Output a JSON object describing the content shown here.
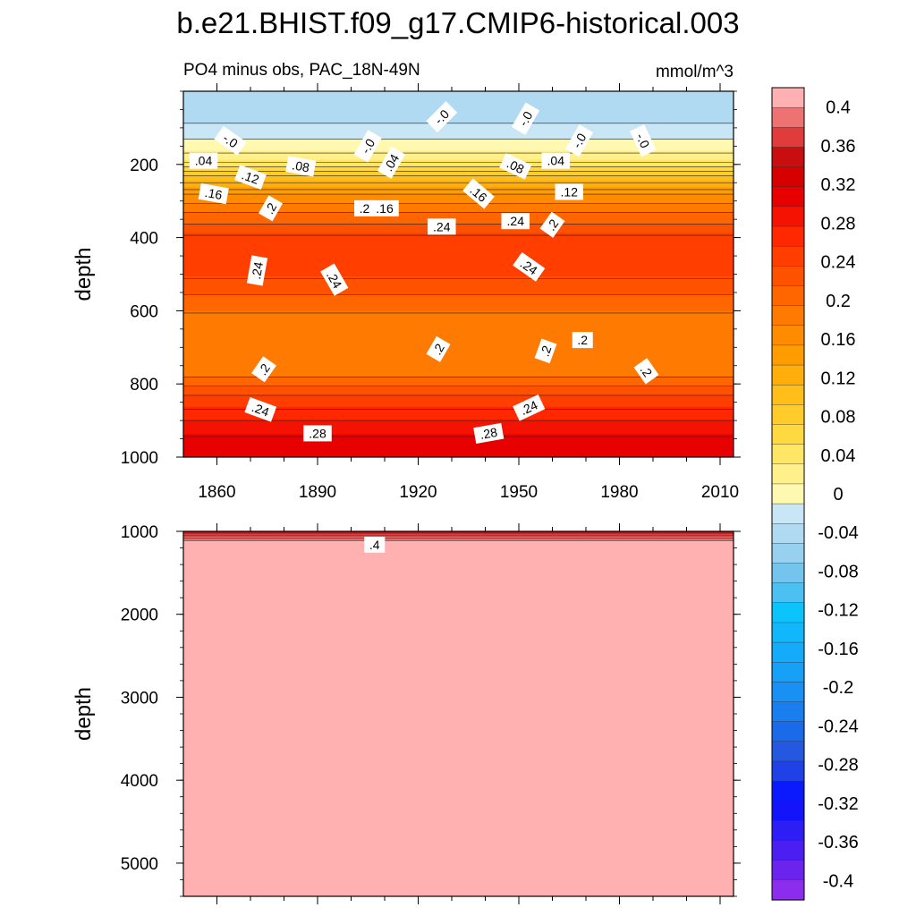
{
  "title": "b.e21.BHIST.f09_g17.CMIP6-historical.003",
  "subtitle_left": "PO4 minus obs, PAC_18N-49N",
  "subtitle_right": "mmol/m^3",
  "chart_data": [
    {
      "type": "heatmap",
      "panel": "upper",
      "xlabel": "",
      "ylabel": "depth",
      "xlim": [
        1850,
        2014
      ],
      "ylim": [
        1000,
        0
      ],
      "x_ticks": [
        1860,
        1890,
        1920,
        1950,
        1980,
        2010
      ],
      "x_tick_labels": [
        "1860",
        "1890",
        "1920",
        "1950",
        "1980",
        "2010"
      ],
      "y_ticks": [
        200,
        400,
        600,
        800,
        1000
      ],
      "y_tick_labels": [
        "200",
        "400",
        "600",
        "800",
        "1000"
      ],
      "depth_profile": [
        {
          "depth": 0,
          "value": -0.03
        },
        {
          "depth": 60,
          "value": -0.03
        },
        {
          "depth": 110,
          "value": -0.01
        },
        {
          "depth": 150,
          "value": 0.01
        },
        {
          "depth": 190,
          "value": 0.04
        },
        {
          "depth": 230,
          "value": 0.1
        },
        {
          "depth": 280,
          "value": 0.16
        },
        {
          "depth": 330,
          "value": 0.2
        },
        {
          "depth": 390,
          "value": 0.24
        },
        {
          "depth": 460,
          "value": 0.26
        },
        {
          "depth": 530,
          "value": 0.23
        },
        {
          "depth": 600,
          "value": 0.2
        },
        {
          "depth": 700,
          "value": 0.18
        },
        {
          "depth": 780,
          "value": 0.2
        },
        {
          "depth": 830,
          "value": 0.24
        },
        {
          "depth": 880,
          "value": 0.27
        },
        {
          "depth": 940,
          "value": 0.3
        },
        {
          "depth": 1000,
          "value": 0.32
        }
      ],
      "contour_labels": [
        {
          "text": "-.0",
          "year": 1864,
          "depth": 135,
          "angle": 35
        },
        {
          "text": "-.0",
          "year": 1905,
          "depth": 150,
          "angle": -60
        },
        {
          "text": "-.0",
          "year": 1927,
          "depth": 70,
          "angle": -45
        },
        {
          "text": "-.0",
          "year": 1952,
          "depth": 75,
          "angle": -60
        },
        {
          "text": "-.0",
          "year": 1968,
          "depth": 135,
          "angle": -60
        },
        {
          "text": "-.0",
          "year": 1987,
          "depth": 135,
          "angle": 65
        },
        {
          "text": ".04",
          "year": 1856,
          "depth": 190,
          "angle": 0
        },
        {
          "text": ".04",
          "year": 1912,
          "depth": 195,
          "angle": -60
        },
        {
          "text": ".04",
          "year": 1961,
          "depth": 190,
          "angle": 0
        },
        {
          "text": ".08",
          "year": 1885,
          "depth": 205,
          "angle": 10
        },
        {
          "text": ".08",
          "year": 1949,
          "depth": 205,
          "angle": 25
        },
        {
          "text": ".12",
          "year": 1870,
          "depth": 235,
          "angle": 20
        },
        {
          "text": ".12",
          "year": 1965,
          "depth": 275,
          "angle": 0
        },
        {
          "text": ".16",
          "year": 1859,
          "depth": 280,
          "angle": 10
        },
        {
          "text": ".16",
          "year": 1910,
          "depth": 320,
          "angle": 0
        },
        {
          "text": ".16",
          "year": 1938,
          "depth": 280,
          "angle": 40
        },
        {
          "text": ".2",
          "year": 1876,
          "depth": 320,
          "angle": -60
        },
        {
          "text": ".2",
          "year": 1904,
          "depth": 320,
          "angle": 0
        },
        {
          "text": ".2",
          "year": 1960,
          "depth": 365,
          "angle": -55
        },
        {
          "text": ".24",
          "year": 1927,
          "depth": 370,
          "angle": 0
        },
        {
          "text": ".24",
          "year": 1949,
          "depth": 355,
          "angle": 0
        },
        {
          "text": ".24",
          "year": 1872,
          "depth": 490,
          "angle": -80
        },
        {
          "text": ".24",
          "year": 1895,
          "depth": 515,
          "angle": 60
        },
        {
          "text": ".24",
          "year": 1953,
          "depth": 480,
          "angle": 35
        },
        {
          "text": ".2",
          "year": 1926,
          "depth": 705,
          "angle": -60
        },
        {
          "text": ".2",
          "year": 1958,
          "depth": 710,
          "angle": -70
        },
        {
          "text": ".2",
          "year": 1969,
          "depth": 680,
          "angle": 0
        },
        {
          "text": ".2",
          "year": 1874,
          "depth": 760,
          "angle": -55
        },
        {
          "text": ".2",
          "year": 1988,
          "depth": 765,
          "angle": 55
        },
        {
          "text": ".24",
          "year": 1873,
          "depth": 870,
          "angle": 20
        },
        {
          "text": ".24",
          "year": 1953,
          "depth": 865,
          "angle": -25
        },
        {
          "text": ".28",
          "year": 1890,
          "depth": 935,
          "angle": 0
        },
        {
          "text": ".28",
          "year": 1941,
          "depth": 935,
          "angle": -10
        }
      ]
    },
    {
      "type": "heatmap",
      "panel": "lower",
      "xlabel": "",
      "ylabel": "depth",
      "xlim": [
        1850,
        2014
      ],
      "ylim": [
        5400,
        1000
      ],
      "y_ticks": [
        1000,
        2000,
        3000,
        4000,
        5000
      ],
      "y_tick_labels": [
        "1000",
        "2000",
        "3000",
        "4000",
        "5000"
      ],
      "depth_profile": [
        {
          "depth": 1000,
          "value": 0.34
        },
        {
          "depth": 1030,
          "value": 0.36
        },
        {
          "depth": 1060,
          "value": 0.38
        },
        {
          "depth": 1100,
          "value": 0.4
        },
        {
          "depth": 1150,
          "value": 0.42
        },
        {
          "depth": 5400,
          "value": 0.42
        }
      ],
      "contour_labels": [
        {
          "text": ".4",
          "year": 1907,
          "depth": 1160,
          "angle": 0
        }
      ]
    },
    {
      "type": "colorbar",
      "levels": [
        -0.4,
        -0.38,
        -0.36,
        -0.34,
        -0.32,
        -0.3,
        -0.28,
        -0.26,
        -0.24,
        -0.22,
        -0.2,
        -0.18,
        -0.16,
        -0.14,
        -0.12,
        -0.1,
        -0.08,
        -0.06,
        -0.04,
        -0.02,
        0,
        0.02,
        0.04,
        0.06,
        0.08,
        0.1,
        0.12,
        0.14,
        0.16,
        0.18,
        0.2,
        0.22,
        0.24,
        0.26,
        0.28,
        0.3,
        0.32,
        0.34,
        0.36,
        0.38,
        0.4
      ],
      "colors": [
        "#8c2ded",
        "#6a24ee",
        "#4b1ff2",
        "#2e1ef6",
        "#1414fa",
        "#0a1afc",
        "#2040e8",
        "#2458e0",
        "#1a6aea",
        "#1a7ef0",
        "#1890f4",
        "#16a0f8",
        "#14acfa",
        "#10b8fb",
        "#0cc4fc",
        "#4cc0f0",
        "#74c4ee",
        "#98d0f0",
        "#b0daf2",
        "#c8e6f6",
        "#fff8b0",
        "#fff08c",
        "#ffe664",
        "#ffd93f",
        "#ffcc2a",
        "#ffbe1a",
        "#ffae0a",
        "#ff9c00",
        "#ff8c00",
        "#ff7a00",
        "#ff6600",
        "#ff5200",
        "#ff3e00",
        "#ff2800",
        "#f51200",
        "#e80000",
        "#d60000",
        "#c80e0e",
        "#e03c3c",
        "#ee7272",
        "#ffb0b0"
      ],
      "tick_values": [
        0.4,
        0.36,
        0.32,
        0.28,
        0.24,
        0.2,
        0.16,
        0.12,
        0.08,
        0.04,
        0,
        -0.04,
        -0.08,
        -0.12,
        -0.16,
        -0.2,
        -0.24,
        -0.28,
        -0.32,
        -0.36,
        -0.4
      ],
      "tick_labels": [
        "0.4",
        "0.36",
        "0.32",
        "0.28",
        "0.24",
        "0.2",
        "0.16",
        "0.12",
        "0.08",
        "0.04",
        "0",
        "-0.04",
        "-0.08",
        "-0.12",
        "-0.16",
        "-0.2",
        "-0.24",
        "-0.28",
        "-0.32",
        "-0.36",
        "-0.4"
      ]
    }
  ]
}
